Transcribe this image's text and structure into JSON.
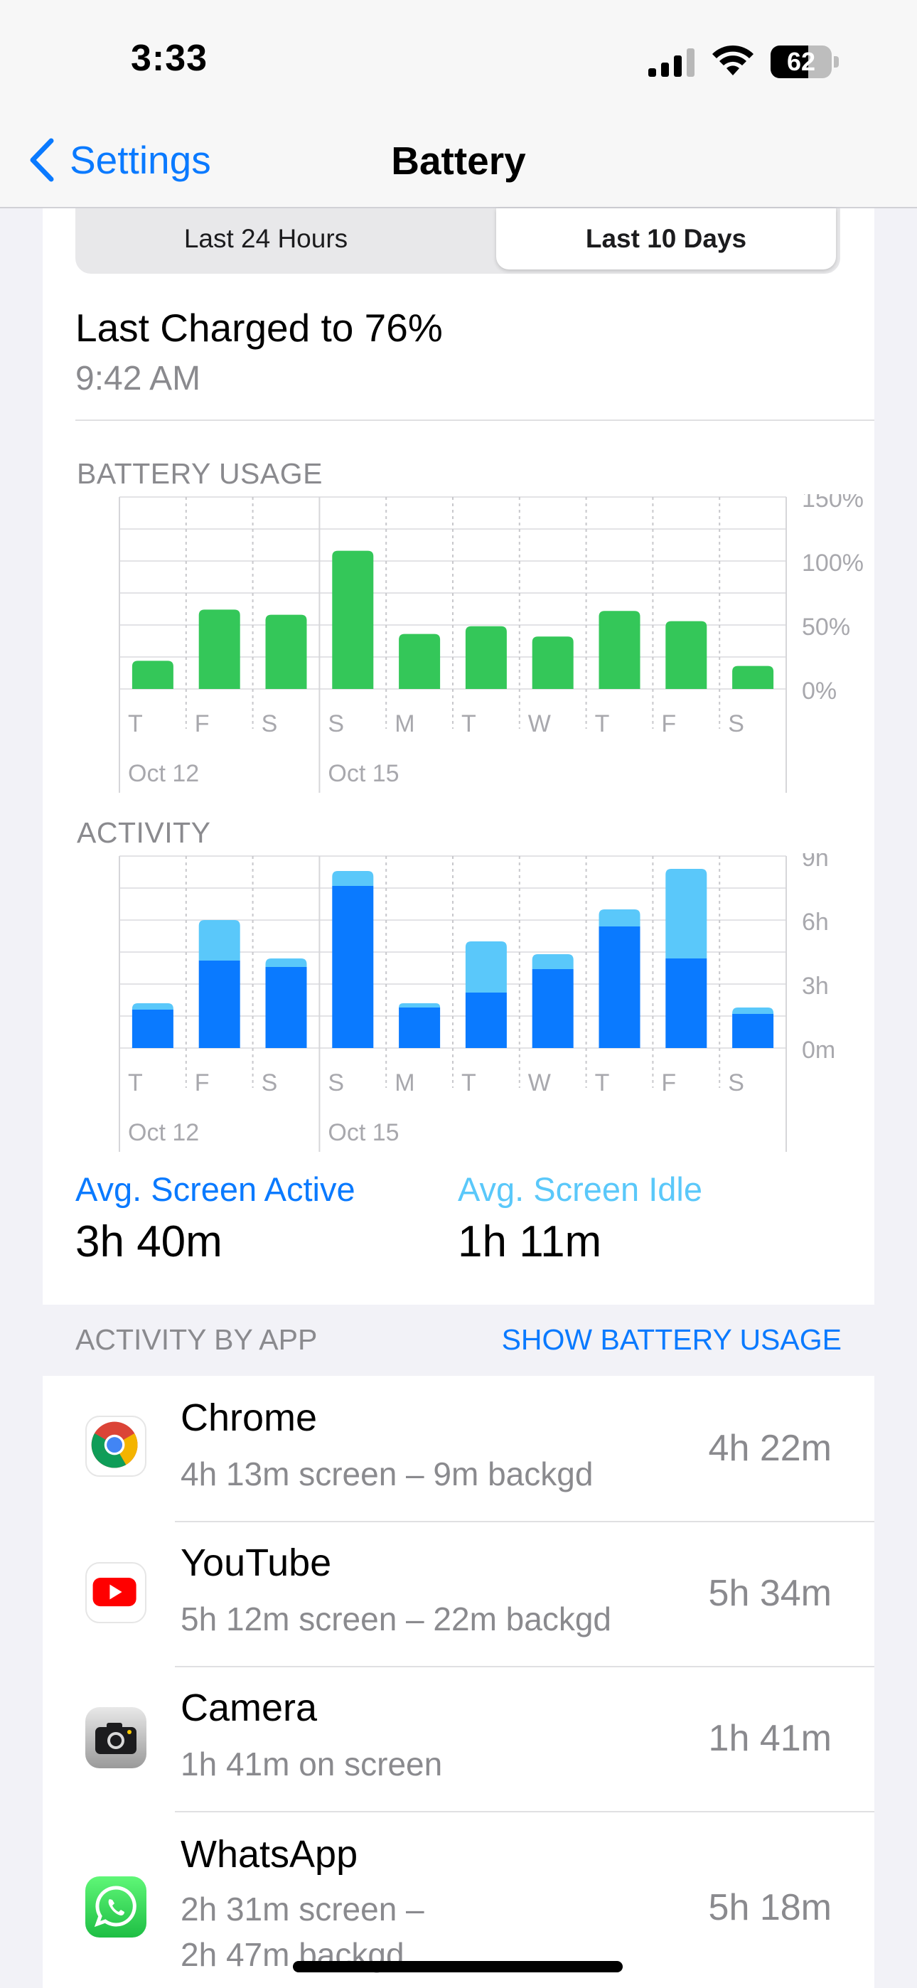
{
  "status_bar": {
    "time": "3:33",
    "battery_level": "62"
  },
  "nav": {
    "back_label": "Settings",
    "title": "Battery"
  },
  "segments": [
    "Last 24 Hours",
    "Last 10 Days"
  ],
  "selected_segment": "Last 10 Days",
  "last_charged": {
    "title": "Last Charged to 76%",
    "time": "9:42 AM"
  },
  "battery_usage": {
    "heading": "BATTERY USAGE"
  },
  "activity": {
    "heading": "ACTIVITY"
  },
  "chart_data": [
    {
      "type": "bar",
      "title": "BATTERY USAGE",
      "categories": [
        "T",
        "F",
        "S",
        "S",
        "M",
        "T",
        "W",
        "T",
        "F",
        "S"
      ],
      "date_labels": [
        "Oct 12",
        "Oct 15"
      ],
      "values": [
        22,
        62,
        58,
        108,
        43,
        49,
        41,
        61,
        53,
        18
      ],
      "ylim": [
        0,
        150
      ],
      "y_ticks": [
        "150%",
        "100%",
        "50%",
        "0%"
      ],
      "color": "#34c759"
    },
    {
      "type": "bar",
      "title": "ACTIVITY",
      "categories": [
        "T",
        "F",
        "S",
        "S",
        "M",
        "T",
        "W",
        "T",
        "F",
        "S"
      ],
      "date_labels": [
        "Oct 12",
        "Oct 15"
      ],
      "series": [
        {
          "values": [
            1.8,
            4.1,
            3.8,
            7.6,
            1.9,
            2.6,
            3.7,
            5.7,
            4.2,
            1.6
          ],
          "color": "#0a7aff"
        },
        {
          "values": [
            0.3,
            1.9,
            0.4,
            0.7,
            0.2,
            2.4,
            0.7,
            0.8,
            4.2,
            0.3
          ],
          "color": "#5ac8fa"
        }
      ],
      "ylim": [
        0,
        9
      ],
      "y_ticks": [
        "9h",
        "6h",
        "3h",
        "0m"
      ],
      "stacked": true
    }
  ],
  "averages": {
    "active_label": "Avg. Screen Active",
    "active_value": "3h 40m",
    "idle_label": "Avg. Screen Idle",
    "idle_value": "1h 11m"
  },
  "activity_by_app": {
    "heading": "ACTIVITY BY APP",
    "toggle": "SHOW BATTERY USAGE",
    "apps": [
      {
        "name": "Chrome",
        "detail": "4h 13m screen – 9m backgd",
        "time": "4h 22m",
        "icon": "chrome-icon"
      },
      {
        "name": "YouTube",
        "detail": "5h 12m screen – 22m backgd",
        "time": "5h 34m",
        "icon": "youtube-icon"
      },
      {
        "name": "Camera",
        "detail": "1h 41m on screen",
        "time": "1h 41m",
        "icon": "camera-icon"
      },
      {
        "name": "WhatsApp",
        "detail_line1": "2h 31m screen –",
        "detail_line2": "2h 47m backgd",
        "time": "5h 18m",
        "icon": "whatsapp-icon"
      }
    ]
  }
}
